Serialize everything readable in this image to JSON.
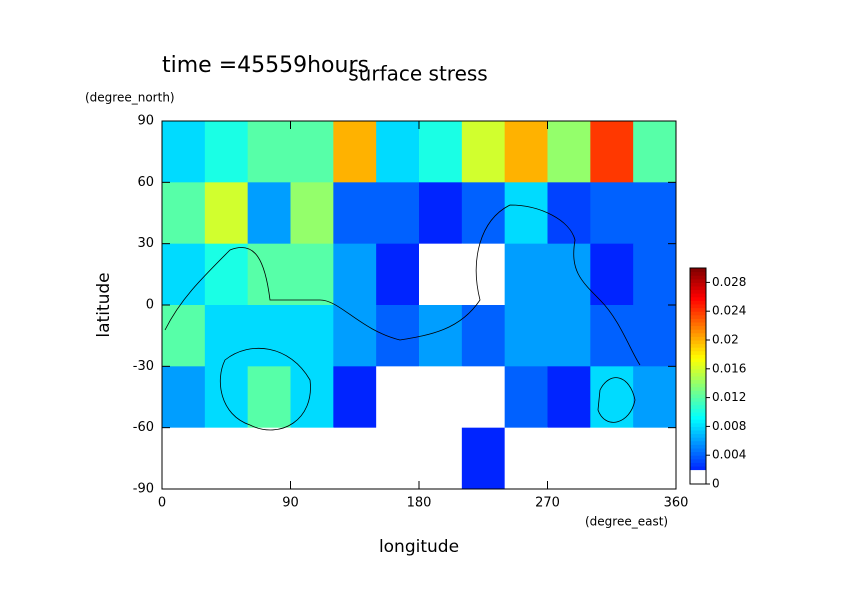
{
  "chart_data": {
    "type": "heatmap",
    "title": "surface stress",
    "subtitle": "time =45559hours",
    "x_label": "longitude",
    "x_units": "(degree_east)",
    "y_label": "latitude",
    "y_units": "(degree_north)",
    "x": [
      15,
      45,
      75,
      105,
      135,
      165,
      195,
      225,
      255,
      285,
      315,
      345
    ],
    "y": [
      75,
      45,
      15,
      -15,
      -45,
      -75
    ],
    "z": [
      [
        0.008,
        0.01,
        0.012,
        0.012,
        0.02,
        0.008,
        0.01,
        0.016,
        0.02,
        0.014,
        0.024,
        0.012
      ],
      [
        0.012,
        0.016,
        0.006,
        0.014,
        0.004,
        0.004,
        0.002,
        0.004,
        0.008,
        0.003,
        0.004,
        0.004
      ],
      [
        0.008,
        0.01,
        0.012,
        0.012,
        0.006,
        0.002,
        0,
        0,
        0.006,
        0.006,
        0.002,
        0.004
      ],
      [
        0.012,
        0.008,
        0.008,
        0.008,
        0.006,
        0.004,
        0.006,
        0.004,
        0.006,
        0.006,
        0.004,
        0.004
      ],
      [
        0.006,
        0.008,
        0.012,
        0.008,
        0.002,
        0,
        0,
        0,
        0.004,
        0.002,
        0.008,
        0.006
      ],
      [
        0,
        0,
        0,
        0,
        0,
        0,
        0,
        0.002,
        0,
        0,
        0,
        0
      ]
    ],
    "xlim": [
      0,
      360
    ],
    "xticks": [
      0,
      90,
      180,
      270,
      360
    ],
    "ylim": [
      -90,
      90
    ],
    "yticks": [
      -90,
      -60,
      -30,
      0,
      30,
      60,
      90
    ],
    "clim": [
      0,
      0.03
    ],
    "cticks": [
      0,
      0.004,
      0.008,
      0.012,
      0.016,
      0.02,
      0.024,
      0.028
    ]
  }
}
